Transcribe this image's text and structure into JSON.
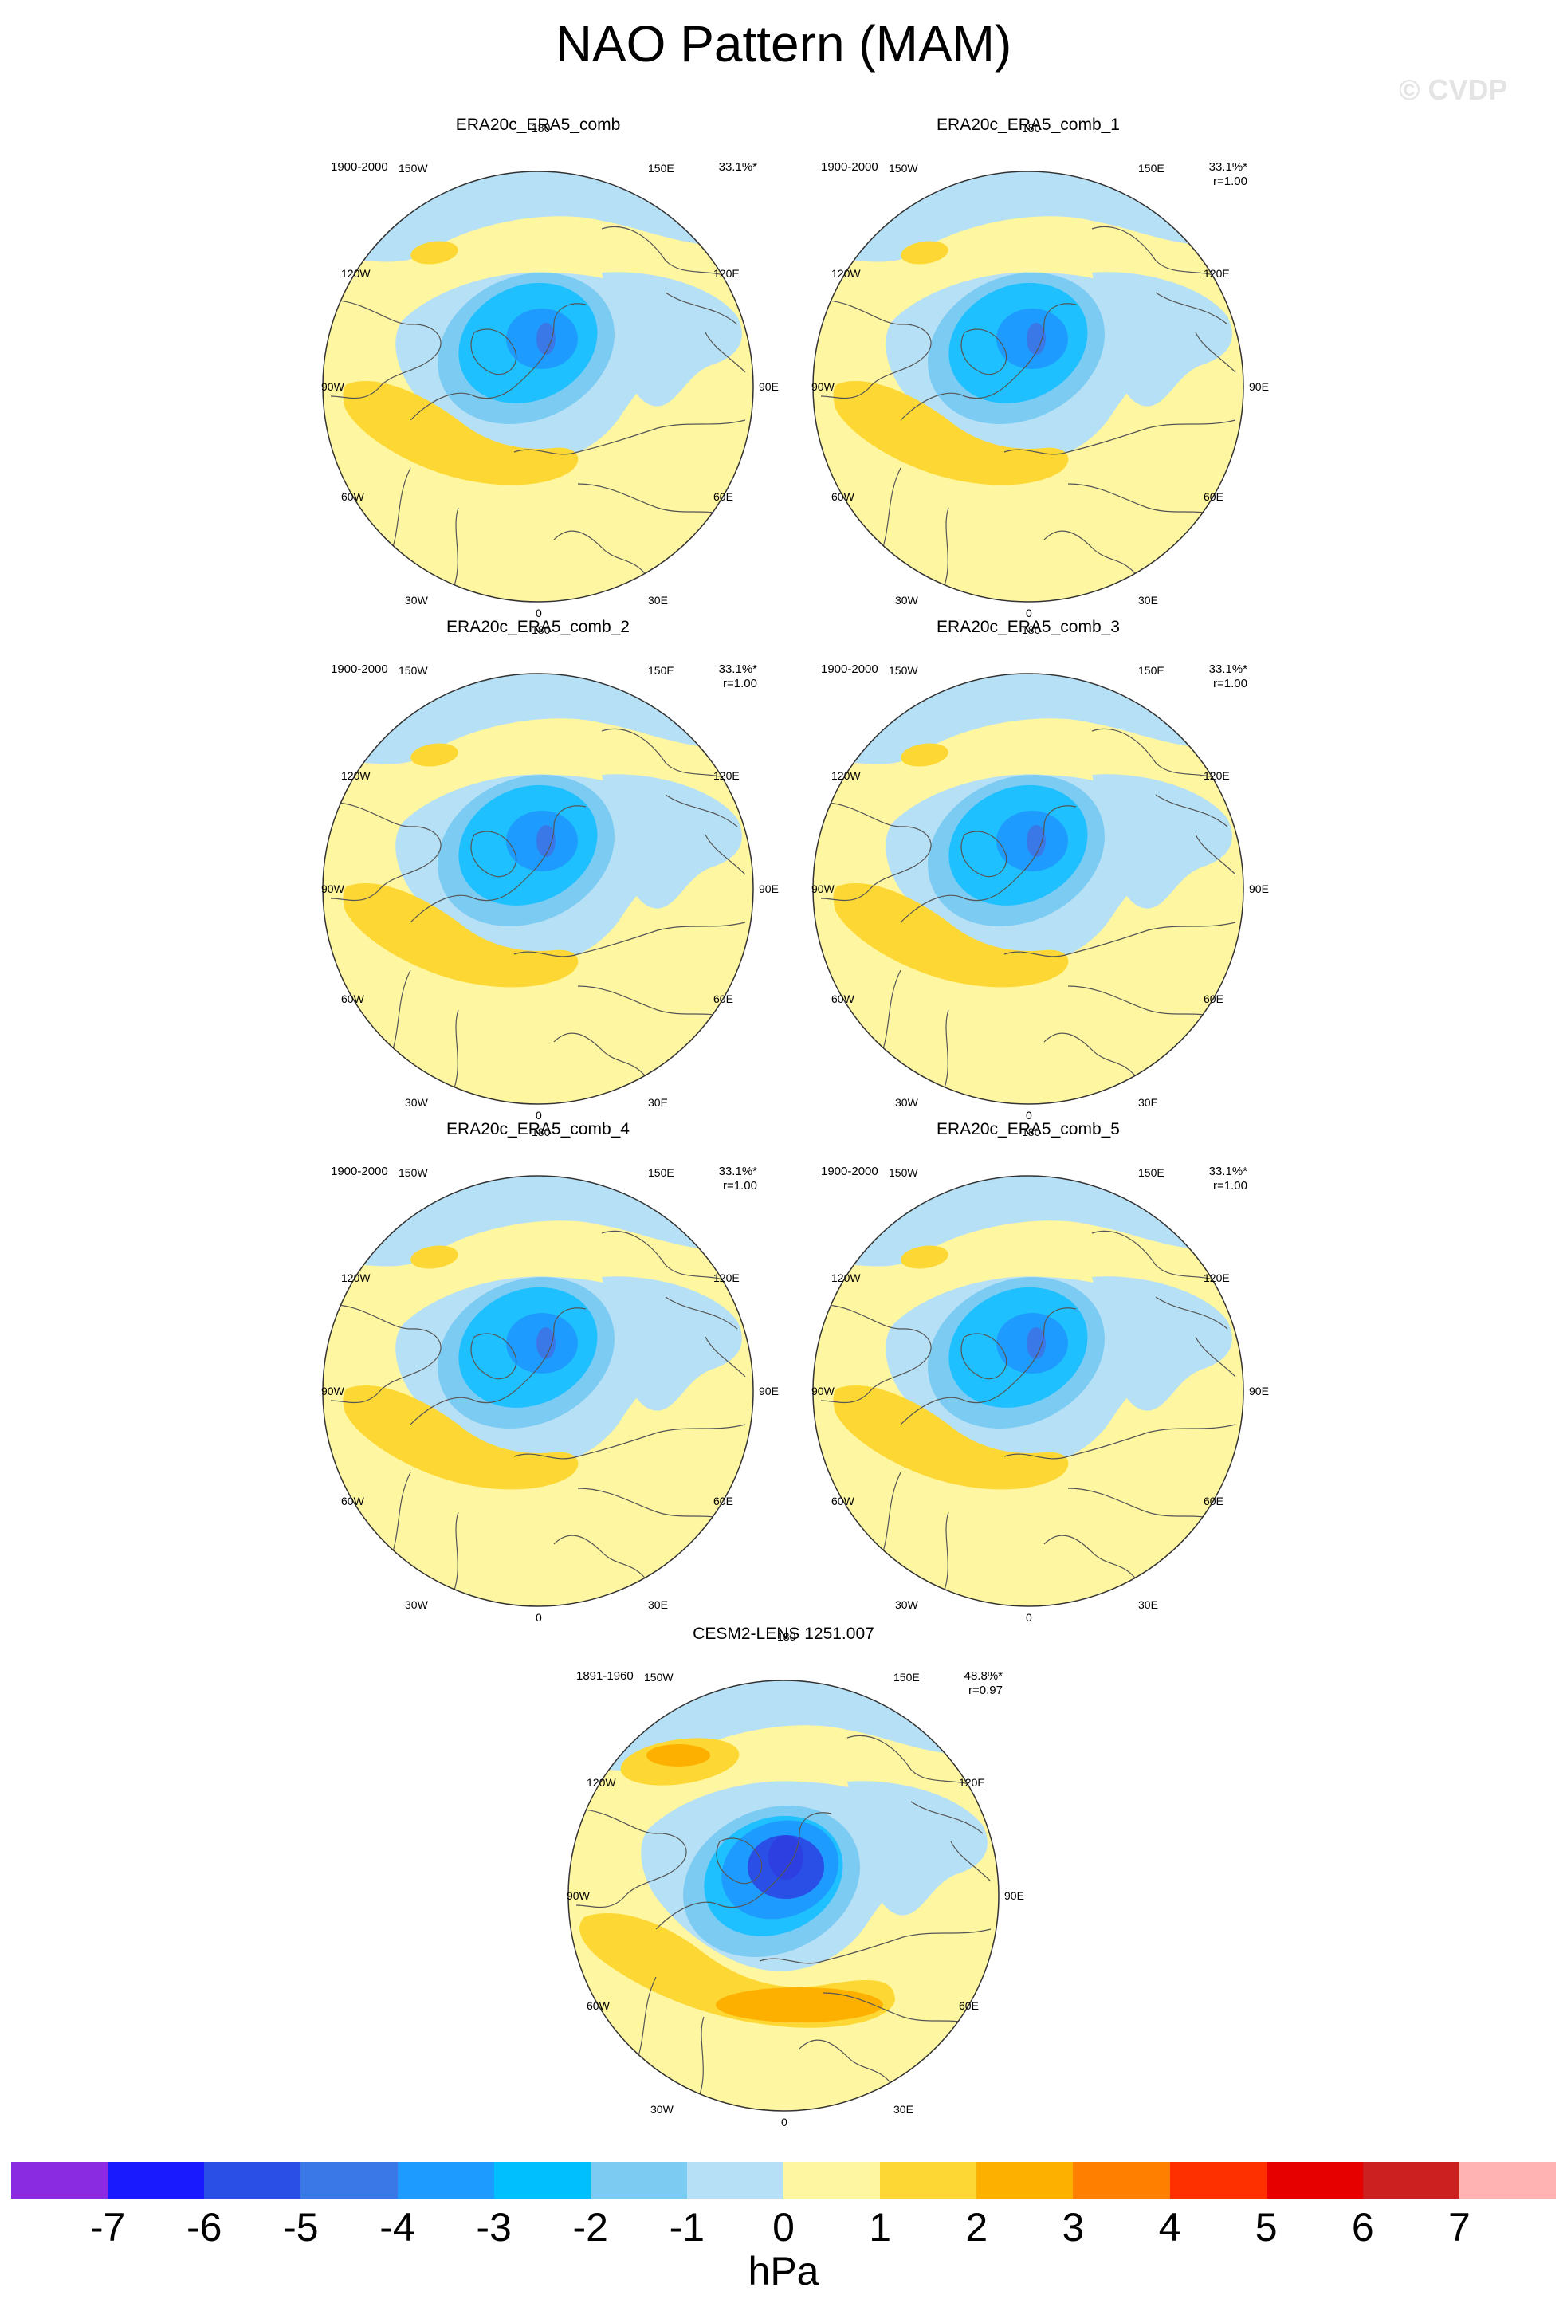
{
  "title": "NAO Pattern (MAM)",
  "watermark": "© CVDP",
  "lon_labels": {
    "top": "180",
    "bottom": "0",
    "left": "90W",
    "right": "90E",
    "ul1": "150W",
    "ul2": "120W",
    "ll1": "60W",
    "ll2": "30W",
    "ur1": "150E",
    "ur2": "120E",
    "lr1": "60E",
    "lr2": "30E"
  },
  "panels": [
    {
      "name": "ERA20c_ERA5_comb",
      "period": "1900-2000",
      "pct": "33.1%*",
      "r": ""
    },
    {
      "name": "ERA20c_ERA5_comb_1",
      "period": "1900-2000",
      "pct": "33.1%*",
      "r": "r=1.00"
    },
    {
      "name": "ERA20c_ERA5_comb_2",
      "period": "1900-2000",
      "pct": "33.1%*",
      "r": "r=1.00"
    },
    {
      "name": "ERA20c_ERA5_comb_3",
      "period": "1900-2000",
      "pct": "33.1%*",
      "r": "r=1.00"
    },
    {
      "name": "ERA20c_ERA5_comb_4",
      "period": "1900-2000",
      "pct": "33.1%*",
      "r": "r=1.00"
    },
    {
      "name": "ERA20c_ERA5_comb_5",
      "period": "1900-2000",
      "pct": "33.1%*",
      "r": "r=1.00"
    },
    {
      "name": "CESM2-LENS 1251.007",
      "period": "1891-1960",
      "pct": "48.8%*",
      "r": "r=0.97"
    }
  ],
  "colorbar": {
    "units": "hPa",
    "labels": [
      "-7",
      "-6",
      "-5",
      "-4",
      "-3",
      "-2",
      "-1",
      "0",
      "1",
      "2",
      "3",
      "4",
      "5",
      "6",
      "7"
    ],
    "colors": [
      "#8a2be2",
      "#1a1aff",
      "#2a4fe6",
      "#3a78e8",
      "#1e9bff",
      "#00bfff",
      "#7ccbf2",
      "#b6e0f5",
      "#fef6a0",
      "#fdd835",
      "#fdb000",
      "#ff7f00",
      "#ff3000",
      "#e60000",
      "#cc1f1f",
      "#ffb3b3"
    ]
  },
  "colors": {
    "lightblue": "#b6e0f5",
    "midblue": "#7ccbf2",
    "cyan": "#1ec0ff",
    "blue": "#1e9bff",
    "darkblue": "#2a4fe6",
    "yellow": "#fef6a0",
    "gold": "#fdd835",
    "orange": "#fdb000"
  }
}
